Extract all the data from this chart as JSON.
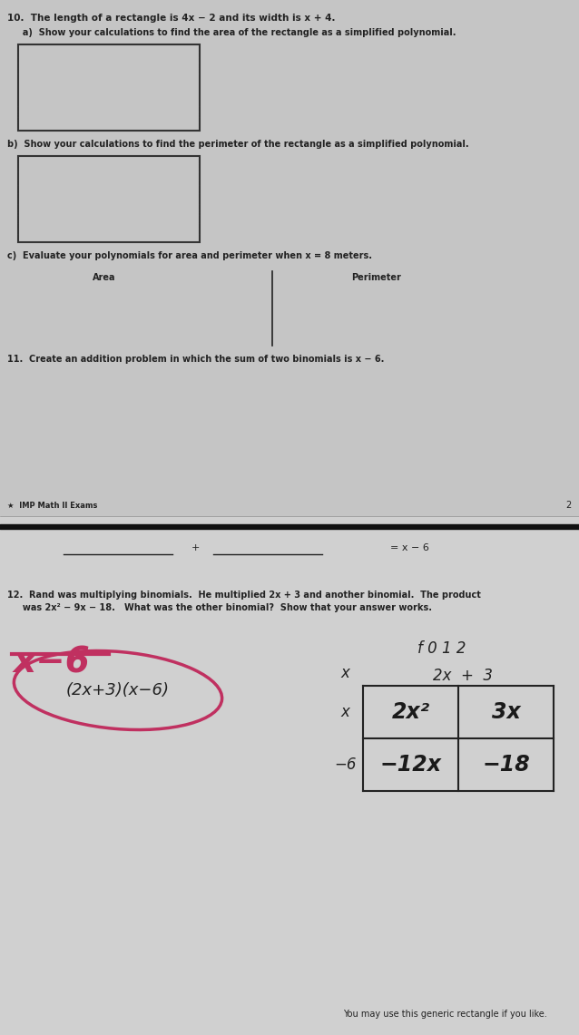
{
  "bg_top": "#c5c5c5",
  "bg_bottom": "#d8d8d8",
  "divider_color": "#1a1a1a",
  "text_color": "#222222",
  "top_section": {
    "q10_line1": "10.  The length of a rectangle is 4x − 2 and its width is x + 4.",
    "q10a": "     a)  Show your calculations to find the area of the rectangle as a simplified polynomial.",
    "q10b": "b)  Show your calculations to find the perimeter of the rectangle as a simplified polynomial.",
    "q10c": "c)  Evaluate your polynomials for area and perimeter when x = 8 meters.",
    "area_label": "Area",
    "perimeter_label": "Perimeter",
    "q11": "11.  Create an addition problem in which the sum of two binomials is x − 6.",
    "footer": "★  IMP Math II Exams",
    "page_num": "2"
  },
  "bottom_section": {
    "blank_line_eq": "= x − 6",
    "q12_line1": "12.  Rand was multiplying binomials.  He multiplied 2x + 3 and another binomial.  The product",
    "q12_line2": "     was 2x² − 9x − 18.   What was the other binomial?  Show that your answer works.",
    "hw_answer": "x−6",
    "hw_circled": "(2x+3)(x−6)",
    "above_grid": "f 0 1 2",
    "grid_header": "2x  +  3",
    "grid_tl": "2x²",
    "grid_tr": "3x",
    "grid_bl": "−12x",
    "grid_br": "−18",
    "row_top": "x",
    "row_bot": "−6",
    "footer_note": "You may use this generic rectangle if you like."
  }
}
